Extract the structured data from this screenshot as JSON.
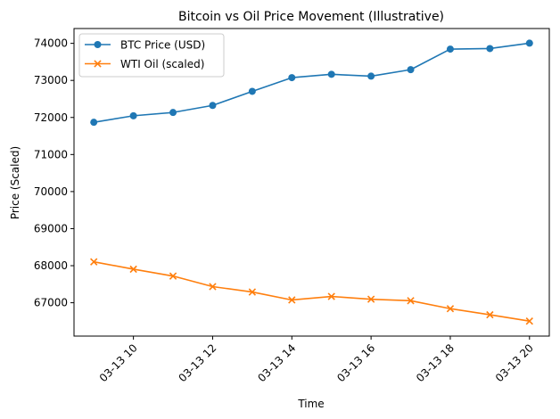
{
  "chart_data": {
    "type": "line",
    "title": "Bitcoin vs Oil Price Movement (Illustrative)",
    "xlabel": "Time",
    "ylabel": "Price (Scaled)",
    "x": [
      "03-13 09",
      "03-13 10",
      "03-13 11",
      "03-13 12",
      "03-13 13",
      "03-13 14",
      "03-13 15",
      "03-13 16",
      "03-13 17",
      "03-13 18",
      "03-13 19",
      "03-13 20"
    ],
    "x_hours": [
      9,
      10,
      11,
      12,
      13,
      14,
      15,
      16,
      17,
      18,
      19,
      20
    ],
    "xlim_hours": [
      8.5,
      20.5
    ],
    "x_ticks": [
      {
        "hour": 10,
        "label": "03-13 10"
      },
      {
        "hour": 12,
        "label": "03-13 12"
      },
      {
        "hour": 14,
        "label": "03-13 14"
      },
      {
        "hour": 16,
        "label": "03-13 16"
      },
      {
        "hour": 18,
        "label": "03-13 18"
      },
      {
        "hour": 20,
        "label": "03-13 20"
      }
    ],
    "ylim": [
      66100,
      74400
    ],
    "y_ticks": [
      {
        "value": 67000,
        "label": "67000"
      },
      {
        "value": 68000,
        "label": "68000"
      },
      {
        "value": 69000,
        "label": "69000"
      },
      {
        "value": 70000,
        "label": "70000"
      },
      {
        "value": 71000,
        "label": "71000"
      },
      {
        "value": 72000,
        "label": "72000"
      },
      {
        "value": 73000,
        "label": "73000"
      },
      {
        "value": 74000,
        "label": "74000"
      }
    ],
    "grid": false,
    "legend_position": "top-left",
    "series": [
      {
        "name": "BTC Price (USD)",
        "color": "#1f77b4",
        "marker": "circle",
        "values": [
          71870,
          72045,
          72135,
          72325,
          72705,
          73075,
          73165,
          73115,
          73290,
          73845,
          73860,
          74005
        ]
      },
      {
        "name": "WTI Oil (scaled)",
        "color": "#ff7f0e",
        "marker": "x",
        "values": [
          68105,
          67905,
          67720,
          67435,
          67290,
          67075,
          67170,
          67095,
          67055,
          66840,
          66675,
          66505
        ]
      }
    ]
  }
}
